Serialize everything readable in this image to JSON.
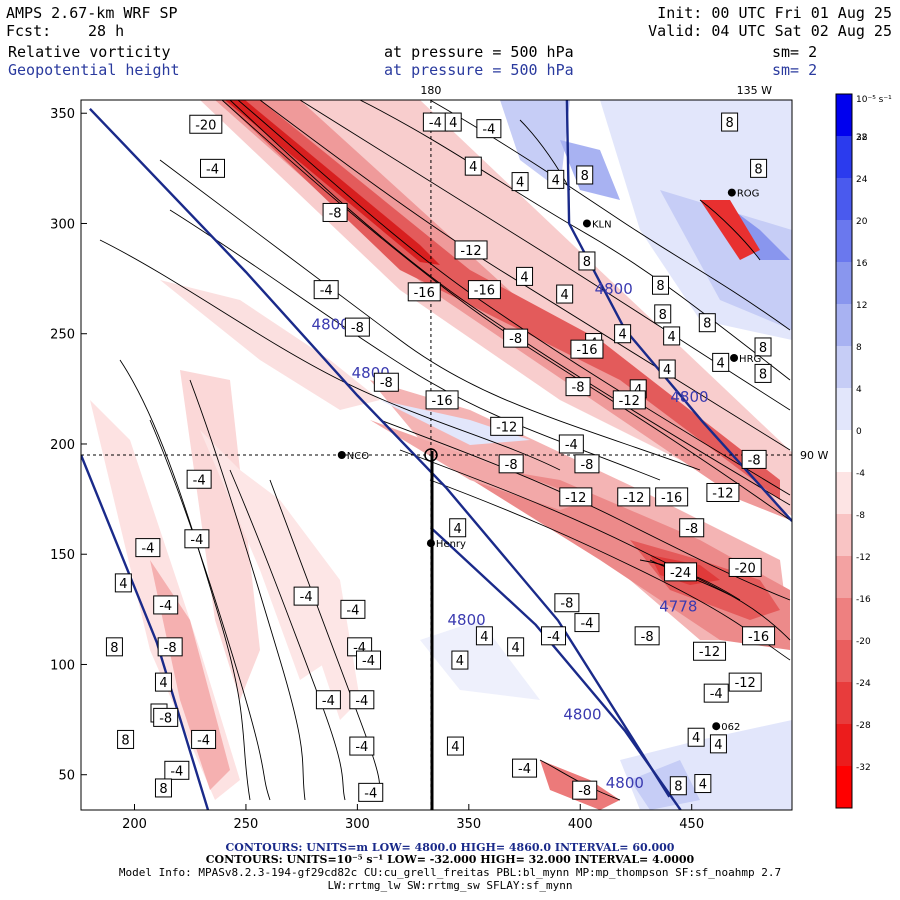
{
  "header": {
    "model": "AMPS 2.67-km WRF SP",
    "init": "Init: 00 UTC Fri 01 Aug 25",
    "fcst_label": "Fcst:",
    "fcst_value": "28 h",
    "valid": "Valid: 04 UTC Sat 02 Aug 25",
    "field1": "Relative vorticity",
    "field1_level": "at pressure =  500 hPa",
    "field1_smooth": "sm= 2",
    "field2": "Geopotential height",
    "field2_level": "at pressure =  500 hPa",
    "field2_smooth": "sm= 2"
  },
  "footer": {
    "contours1": "CONTOURS:  UNITS=m  LOW=  4800.0          HIGH=  4860.0          INTERVAL=   60.000",
    "contours2": "CONTOURS:  UNITS=10⁻⁵ s⁻¹  LOW=  -32.000          HIGH=  32.000          INTERVAL=   4.0000",
    "model_info": "Model Info: MPASv8.2.3-194-gf29cd82c CU:cu_grell_freitas PBL:bl_mynn MP:mp_thompson SF:sf_noahmp 2.7",
    "model_info2": "LW:rrtmg_lw SW:rrtmg_sw SFLAY:sf_mynn"
  },
  "chart_data": {
    "type": "heatmap",
    "x_ticks": [
      200,
      250,
      300,
      350,
      400,
      450
    ],
    "y_ticks": [
      50,
      100,
      150,
      200,
      250,
      300,
      350
    ],
    "xlim": [
      176,
      495
    ],
    "ylim": [
      34,
      356
    ],
    "meridians": [
      {
        "label": "180",
        "x": 333
      },
      {
        "label": "135 W",
        "x": 470
      },
      {
        "label": "90 W",
        "y": 195
      }
    ],
    "colorbar": {
      "units": "10⁻⁵ s⁻¹",
      "ticks": [
        32,
        28,
        24,
        20,
        16,
        12,
        8,
        4,
        0,
        -4,
        -8,
        -12,
        -16,
        -20,
        -24,
        -28,
        -32
      ],
      "colors": [
        "#0000ee",
        "#2b3bee",
        "#4a5aee",
        "#6a78ee",
        "#8996ee",
        "#a8b2f2",
        "#c6cdf6",
        "#e2e6fb",
        "#ffffff",
        "#fde4e4",
        "#f9c4c4",
        "#f3a2a2",
        "#ee8080",
        "#ea5e5e",
        "#e83c3c",
        "#ec1c1c",
        "#ff0000"
      ]
    },
    "stations": [
      {
        "name": "NCO",
        "x": 293,
        "y": 195
      },
      {
        "name": "Henry",
        "x": 333,
        "y": 155
      },
      {
        "name": "KLN",
        "x": 403,
        "y": 300
      },
      {
        "name": "ROG",
        "x": 468,
        "y": 314
      },
      {
        "name": "HRG",
        "x": 469,
        "y": 239
      },
      {
        "name": "062",
        "x": 461,
        "y": 72
      }
    ],
    "height_contours": [
      {
        "value": 4800,
        "points": [
          [
            180,
            352
          ],
          [
            250,
            278
          ],
          [
            300,
            222
          ],
          [
            340,
            180
          ],
          [
            390,
            120
          ],
          [
            440,
            40
          ]
        ],
        "labels": [
          {
            "text": "4800",
            "x": 288,
            "y": 252
          },
          {
            "text": "4800",
            "x": 306,
            "y": 230
          }
        ]
      },
      {
        "value": 4800,
        "points": [
          [
            176,
            195
          ],
          [
            210,
            110
          ],
          [
            233,
            34
          ]
        ],
        "labels": []
      },
      {
        "value": 4800,
        "points": [
          [
            333,
            162
          ],
          [
            380,
            118
          ],
          [
            420,
            70
          ],
          [
            445,
            34
          ]
        ],
        "labels": [
          {
            "text": "4800",
            "x": 349,
            "y": 118
          },
          {
            "text": "4800",
            "x": 401,
            "y": 75
          },
          {
            "text": "4800",
            "x": 420,
            "y": 44
          }
        ]
      },
      {
        "value": 4800,
        "points": [
          [
            394,
            356
          ],
          [
            395,
            300
          ],
          [
            420,
            252
          ],
          [
            455,
            210
          ],
          [
            495,
            165
          ]
        ],
        "labels": [
          {
            "text": "4800",
            "x": 415,
            "y": 268
          },
          {
            "text": "4800",
            "x": 449,
            "y": 219
          }
        ]
      },
      {
        "value": 4778,
        "points": [],
        "labels": [
          {
            "text": "4778",
            "x": 444,
            "y": 124
          }
        ]
      }
    ],
    "vorticity_labels": [
      {
        "text": "-20",
        "x": 232,
        "y": 345
      },
      {
        "text": "-4",
        "x": 235,
        "y": 325
      },
      {
        "text": "-8",
        "x": 290,
        "y": 305
      },
      {
        "text": "-4",
        "x": 335,
        "y": 346
      },
      {
        "text": "4",
        "x": 343,
        "y": 346
      },
      {
        "text": "4",
        "x": 352,
        "y": 326
      },
      {
        "text": "4",
        "x": 373,
        "y": 319
      },
      {
        "text": "4",
        "x": 389,
        "y": 320
      },
      {
        "text": "8",
        "x": 402,
        "y": 322
      },
      {
        "text": "8",
        "x": 403,
        "y": 283
      },
      {
        "text": "4",
        "x": 375,
        "y": 276
      },
      {
        "text": "4",
        "x": 393,
        "y": 268
      },
      {
        "text": "8",
        "x": 436,
        "y": 272
      },
      {
        "text": "8",
        "x": 437,
        "y": 259
      },
      {
        "text": "4",
        "x": 441,
        "y": 249
      },
      {
        "text": "8",
        "x": 457,
        "y": 255
      },
      {
        "text": "8",
        "x": 467,
        "y": 346
      },
      {
        "text": "8",
        "x": 480,
        "y": 325
      },
      {
        "text": "8",
        "x": 482,
        "y": 244
      },
      {
        "text": "4",
        "x": 463,
        "y": 237
      },
      {
        "text": "4",
        "x": 439,
        "y": 234
      },
      {
        "text": "4",
        "x": 426,
        "y": 225
      },
      {
        "text": "8",
        "x": 482,
        "y": 232
      },
      {
        "text": "4",
        "x": 406,
        "y": 246
      },
      {
        "text": "4",
        "x": 419,
        "y": 250
      },
      {
        "text": "-4",
        "x": 359,
        "y": 343
      },
      {
        "text": "-12",
        "x": 351,
        "y": 288
      },
      {
        "text": "-16",
        "x": 330,
        "y": 269
      },
      {
        "text": "-16",
        "x": 357,
        "y": 270
      },
      {
        "text": "-4",
        "x": 286,
        "y": 270
      },
      {
        "text": "-8",
        "x": 300,
        "y": 253
      },
      {
        "text": "-8",
        "x": 371,
        "y": 248
      },
      {
        "text": "-16",
        "x": 403,
        "y": 243
      },
      {
        "text": "-8",
        "x": 399,
        "y": 226
      },
      {
        "text": "-12",
        "x": 422,
        "y": 220
      },
      {
        "text": "-8",
        "x": 313,
        "y": 228
      },
      {
        "text": "-16",
        "x": 338,
        "y": 220
      },
      {
        "text": "-12",
        "x": 367,
        "y": 208
      },
      {
        "text": "-4",
        "x": 396,
        "y": 200
      },
      {
        "text": "-8",
        "x": 369,
        "y": 191
      },
      {
        "text": "-8",
        "x": 403,
        "y": 191
      },
      {
        "text": "-8",
        "x": 478,
        "y": 193
      },
      {
        "text": "-12",
        "x": 464,
        "y": 178
      },
      {
        "text": "-12",
        "x": 398,
        "y": 176
      },
      {
        "text": "-12",
        "x": 424,
        "y": 176
      },
      {
        "text": "-16",
        "x": 441,
        "y": 176
      },
      {
        "text": "-8",
        "x": 450,
        "y": 162
      },
      {
        "text": "-24",
        "x": 445,
        "y": 142
      },
      {
        "text": "-20",
        "x": 474,
        "y": 144
      },
      {
        "text": "-8",
        "x": 394,
        "y": 128
      },
      {
        "text": "-4",
        "x": 403,
        "y": 119
      },
      {
        "text": "-4",
        "x": 388,
        "y": 113
      },
      {
        "text": "-8",
        "x": 430,
        "y": 113
      },
      {
        "text": "-16",
        "x": 480,
        "y": 113
      },
      {
        "text": "-12",
        "x": 458,
        "y": 106
      },
      {
        "text": "-12",
        "x": 474,
        "y": 92
      },
      {
        "text": "-4",
        "x": 461,
        "y": 87
      },
      {
        "text": "4",
        "x": 357,
        "y": 113
      },
      {
        "text": "4",
        "x": 371,
        "y": 108
      },
      {
        "text": "4",
        "x": 346,
        "y": 102
      },
      {
        "text": "-4",
        "x": 120,
        "y": 246
      },
      {
        "text": "-4",
        "x": 229,
        "y": 184
      },
      {
        "text": "-4",
        "x": 228,
        "y": 157
      },
      {
        "text": "-4",
        "x": 206,
        "y": 153
      },
      {
        "text": "4",
        "x": 195,
        "y": 137
      },
      {
        "text": "-4",
        "x": 214,
        "y": 127
      },
      {
        "text": "8",
        "x": 191,
        "y": 108
      },
      {
        "text": "-8",
        "x": 216,
        "y": 108
      },
      {
        "text": "4",
        "x": 213,
        "y": 92
      },
      {
        "text": "8",
        "x": 211,
        "y": 78
      },
      {
        "text": "-8",
        "x": 214,
        "y": 76
      },
      {
        "text": "8",
        "x": 196,
        "y": 66
      },
      {
        "text": "-4",
        "x": 219,
        "y": 52
      },
      {
        "text": "8",
        "x": 213,
        "y": 44
      },
      {
        "text": "-4",
        "x": 231,
        "y": 66
      },
      {
        "text": "-4",
        "x": 298,
        "y": 125
      },
      {
        "text": "-4",
        "x": 277,
        "y": 131
      },
      {
        "text": "-4",
        "x": 301,
        "y": 108
      },
      {
        "text": "-4",
        "x": 305,
        "y": 102
      },
      {
        "text": "-4",
        "x": 287,
        "y": 84
      },
      {
        "text": "-4",
        "x": 302,
        "y": 84
      },
      {
        "text": "-4",
        "x": 302,
        "y": 63
      },
      {
        "text": "-4",
        "x": 306,
        "y": 42
      },
      {
        "text": "4",
        "x": 345,
        "y": 162
      },
      {
        "text": "4",
        "x": 344,
        "y": 63
      },
      {
        "text": "-4",
        "x": 375,
        "y": 53
      },
      {
        "text": "-8",
        "x": 402,
        "y": 43
      },
      {
        "text": "8",
        "x": 444,
        "y": 45
      },
      {
        "text": "4",
        "x": 455,
        "y": 46
      },
      {
        "text": "4",
        "x": 452,
        "y": 67
      },
      {
        "text": "4",
        "x": 462,
        "y": 64
      }
    ]
  }
}
